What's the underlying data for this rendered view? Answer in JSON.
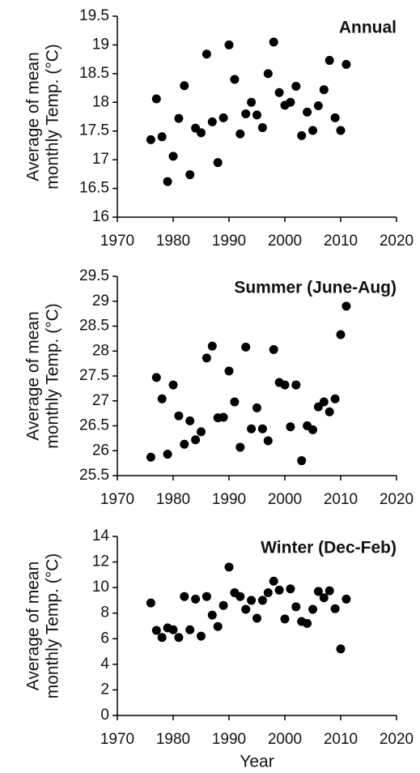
{
  "chart_data": [
    {
      "type": "scatter",
      "title": "Annual",
      "ylabel": [
        "Average of mean",
        "monthly Temp. (°C)"
      ],
      "color": "#000000",
      "x": [
        1976,
        1977,
        1978,
        1979,
        1980,
        1981,
        1982,
        1983,
        1984,
        1985,
        1986,
        1987,
        1988,
        1989,
        1990,
        1991,
        1992,
        1993,
        1994,
        1995,
        1996,
        1997,
        1998,
        1999,
        2000,
        2001,
        2002,
        2003,
        2004,
        2005,
        2006,
        2007,
        2008,
        2009,
        2010,
        2011
      ],
      "values": [
        17.35,
        18.06,
        17.4,
        16.62,
        17.06,
        17.72,
        18.29,
        16.74,
        17.55,
        17.47,
        18.84,
        17.66,
        16.95,
        17.73,
        19.0,
        18.4,
        17.45,
        17.8,
        18.0,
        17.78,
        17.56,
        18.5,
        19.05,
        18.17,
        17.95,
        18.0,
        18.28,
        17.42,
        17.83,
        17.51,
        17.94,
        18.22,
        18.73,
        17.73,
        17.51,
        18.66
      ],
      "xlim": [
        1970,
        2020
      ],
      "xticks": [
        1970,
        1980,
        1990,
        2000,
        2010,
        2020
      ],
      "ylim": [
        16,
        19.5
      ],
      "yticks": [
        16,
        16.5,
        17,
        17.5,
        18,
        18.5,
        19,
        19.5
      ]
    },
    {
      "type": "scatter",
      "title": "Summer (June-Aug)",
      "ylabel": [
        "Average of mean",
        "monthly Temp. (°C)"
      ],
      "color": "#000000",
      "x": [
        1976,
        1977,
        1978,
        1979,
        1980,
        1981,
        1982,
        1983,
        1984,
        1985,
        1986,
        1987,
        1988,
        1989,
        1990,
        1991,
        1992,
        1993,
        1994,
        1995,
        1996,
        1997,
        1998,
        1999,
        2000,
        2001,
        2002,
        2003,
        2004,
        2005,
        2006,
        2007,
        2008,
        2009,
        2010,
        2011
      ],
      "values": [
        25.87,
        27.47,
        27.04,
        25.93,
        27.32,
        26.7,
        26.13,
        26.6,
        26.22,
        26.38,
        27.86,
        28.1,
        26.66,
        26.67,
        27.6,
        26.98,
        26.07,
        28.08,
        26.44,
        26.86,
        26.44,
        26.2,
        28.03,
        27.37,
        27.32,
        26.48,
        27.32,
        25.8,
        26.5,
        26.42,
        26.88,
        26.98,
        26.78,
        27.04,
        28.33,
        28.9
      ],
      "xlim": [
        1970,
        2020
      ],
      "xticks": [
        1970,
        1980,
        1990,
        2000,
        2010,
        2020
      ],
      "ylim": [
        25.5,
        29.5
      ],
      "yticks": [
        25.5,
        26,
        26.5,
        27,
        27.5,
        28,
        28.5,
        29,
        29.5
      ]
    },
    {
      "type": "scatter",
      "title": "Winter (Dec-Feb)",
      "ylabel": [
        "Average of mean",
        "monthly Temp. (°C)"
      ],
      "xlabel": "Year",
      "color": "#000000",
      "x": [
        1976,
        1977,
        1978,
        1979,
        1980,
        1981,
        1982,
        1983,
        1984,
        1985,
        1986,
        1987,
        1988,
        1989,
        1990,
        1991,
        1992,
        1993,
        1994,
        1995,
        1996,
        1997,
        1998,
        1999,
        2000,
        2001,
        2002,
        2003,
        2004,
        2005,
        2006,
        2007,
        2008,
        2009,
        2010,
        2011
      ],
      "values": [
        8.8,
        6.65,
        6.1,
        6.85,
        6.7,
        6.1,
        9.3,
        6.7,
        9.1,
        6.2,
        9.3,
        7.85,
        6.95,
        8.6,
        11.6,
        9.6,
        9.3,
        8.3,
        9.0,
        7.6,
        9.0,
        9.6,
        10.5,
        9.8,
        7.55,
        9.9,
        8.5,
        7.35,
        7.2,
        8.3,
        9.7,
        9.2,
        9.75,
        8.35,
        5.2,
        9.1
      ],
      "xlim": [
        1970,
        2020
      ],
      "xticks": [
        1970,
        1980,
        1990,
        2000,
        2010,
        2020
      ],
      "ylim": [
        0,
        14
      ],
      "yticks": [
        0,
        2,
        4,
        6,
        8,
        10,
        12,
        14
      ]
    }
  ]
}
